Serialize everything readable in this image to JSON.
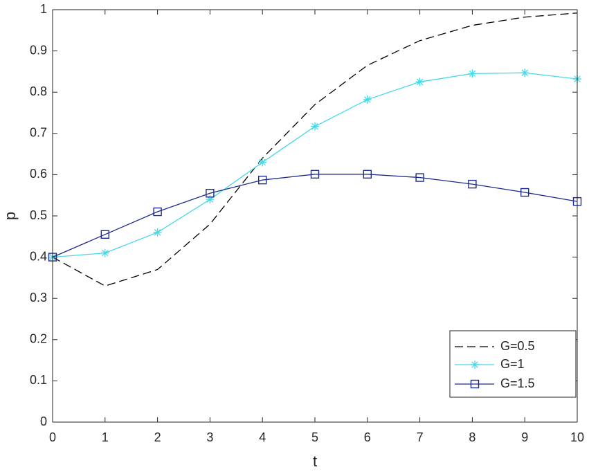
{
  "chart_data": {
    "type": "line",
    "xlabel": "t",
    "ylabel": "p",
    "xlim": [
      0,
      10
    ],
    "ylim": [
      0,
      1
    ],
    "x_ticks": [
      0,
      1,
      2,
      3,
      4,
      5,
      6,
      7,
      8,
      9,
      10
    ],
    "x_tick_labels": [
      "0",
      "1",
      "2",
      "3",
      "4",
      "5",
      "6",
      "7",
      "8",
      "9",
      "10"
    ],
    "y_ticks": [
      0,
      0.1,
      0.2,
      0.3,
      0.4,
      0.5,
      0.6,
      0.7,
      0.8,
      0.9,
      1
    ],
    "y_tick_labels": [
      "0",
      "0.1",
      "0.2",
      "0.3",
      "0.4",
      "0.5",
      "0.6",
      "0.7",
      "0.8",
      "0.9",
      "1"
    ],
    "grid": false,
    "legend_position": "bottom-right",
    "x": [
      0,
      1,
      2,
      3,
      4,
      5,
      6,
      7,
      8,
      9,
      10
    ],
    "series": [
      {
        "name": "G=0.5",
        "values": [
          0.4,
          0.33,
          0.37,
          0.48,
          0.64,
          0.77,
          0.865,
          0.925,
          0.962,
          0.982,
          0.992
        ],
        "color": "#000000",
        "line_style": "dashed",
        "marker": "none"
      },
      {
        "name": "G=1",
        "values": [
          0.4,
          0.41,
          0.46,
          0.54,
          0.63,
          0.717,
          0.782,
          0.825,
          0.845,
          0.847,
          0.832
        ],
        "color": "#44d9e6",
        "line_style": "solid",
        "marker": "asterisk"
      },
      {
        "name": "G=1.5",
        "values": [
          0.4,
          0.455,
          0.51,
          0.555,
          0.587,
          0.601,
          0.601,
          0.593,
          0.577,
          0.557,
          0.535
        ],
        "color": "#1c2a8c",
        "line_style": "solid",
        "marker": "square"
      }
    ]
  }
}
